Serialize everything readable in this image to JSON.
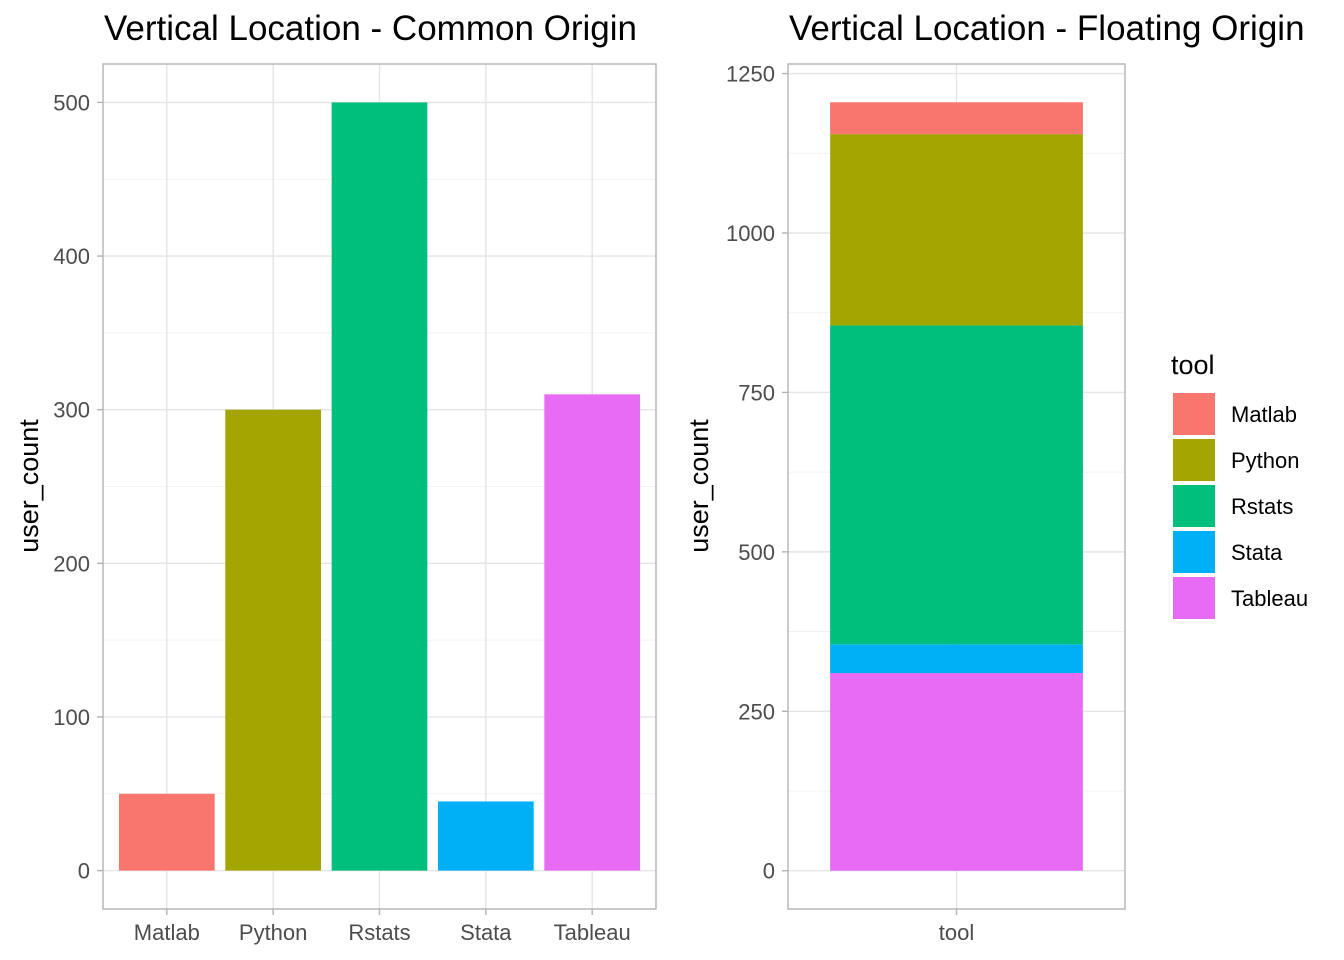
{
  "chart_data": [
    {
      "type": "bar",
      "title": "Vertical Location - Common Origin",
      "xlabel": "",
      "ylabel": "user_count",
      "categories": [
        "Matlab",
        "Python",
        "Rstats",
        "Stata",
        "Tableau"
      ],
      "values": [
        50,
        300,
        500,
        45,
        310
      ],
      "colors": [
        "#F8766D",
        "#A3A500",
        "#00BF7D",
        "#00B0F6",
        "#E76BF3"
      ],
      "ylim": [
        -25,
        525
      ],
      "yticks": [
        0,
        100,
        200,
        300,
        400,
        500
      ],
      "grid": true
    },
    {
      "type": "bar",
      "stacked": true,
      "title": "Vertical Location - Floating Origin",
      "xlabel": "",
      "ylabel": "user_count",
      "categories": [
        "tool"
      ],
      "series": [
        {
          "name": "Matlab",
          "values": [
            50
          ],
          "color": "#F8766D"
        },
        {
          "name": "Python",
          "values": [
            300
          ],
          "color": "#A3A500"
        },
        {
          "name": "Rstats",
          "values": [
            500
          ],
          "color": "#00BF7D"
        },
        {
          "name": "Stata",
          "values": [
            45
          ],
          "color": "#00B0F6"
        },
        {
          "name": "Tableau",
          "values": [
            310
          ],
          "color": "#E76BF3"
        }
      ],
      "stack_order_bottom_to_top": [
        "Tableau",
        "Stata",
        "Rstats",
        "Python",
        "Matlab"
      ],
      "ylim": [
        -60,
        1265
      ],
      "yticks": [
        0,
        250,
        500,
        750,
        1000,
        1250
      ],
      "legend_title": "tool",
      "legend_position": "right",
      "grid": true
    }
  ]
}
